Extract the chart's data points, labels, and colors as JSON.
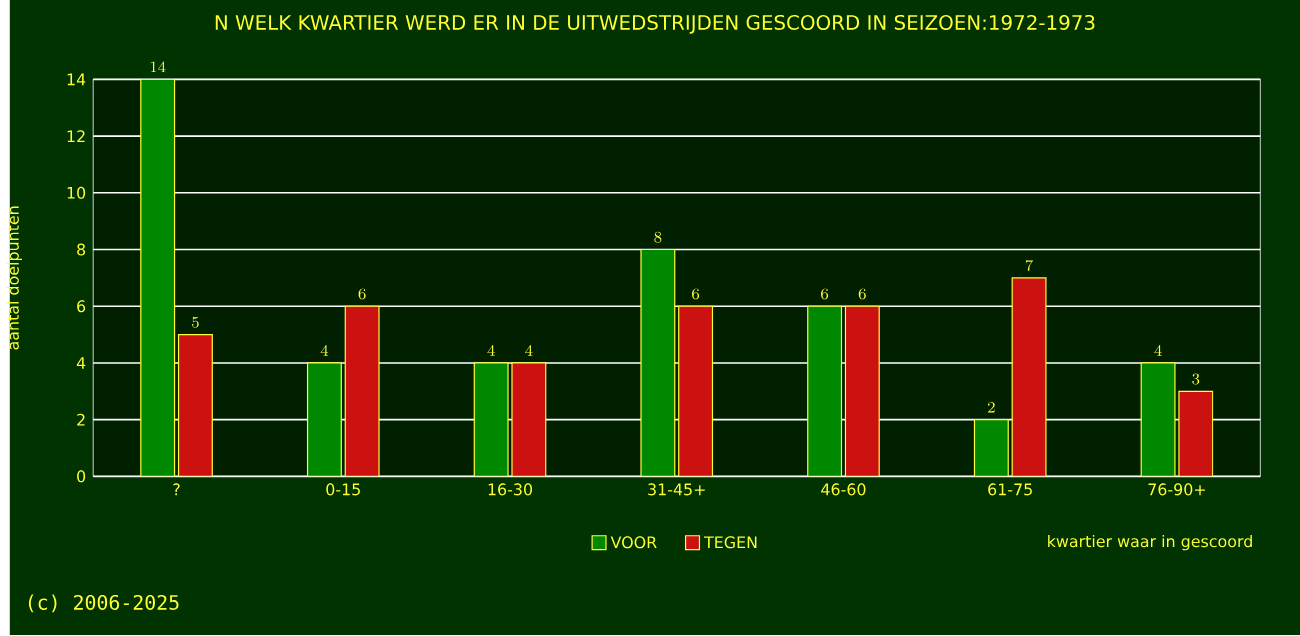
{
  "chart_data": {
    "type": "bar",
    "title": "N WELK KWARTIER WERD ER IN DE UITWEDSTRIJDEN GESCOORD IN SEIZOEN:1972-1973",
    "xlabel": "kwartier waar in gescoord",
    "ylabel": "aantal doelpunten",
    "categories": [
      "?",
      "0-15",
      "16-30",
      "31-45+",
      "46-60",
      "61-75",
      "76-90+"
    ],
    "series": [
      {
        "name": "VOOR",
        "color": "#008800",
        "values": [
          14,
          4,
          4,
          8,
          6,
          2,
          4
        ]
      },
      {
        "name": "TEGEN",
        "color": "#cc1111",
        "values": [
          5,
          6,
          4,
          6,
          6,
          7,
          3
        ]
      }
    ],
    "ylim": [
      0,
      14
    ],
    "yticks": [
      0,
      2,
      4,
      6,
      8,
      10,
      12,
      14
    ],
    "grid": "y",
    "legend": "bottom",
    "data_labels": true,
    "annotations": [
      "(c) 2006-2025"
    ]
  }
}
